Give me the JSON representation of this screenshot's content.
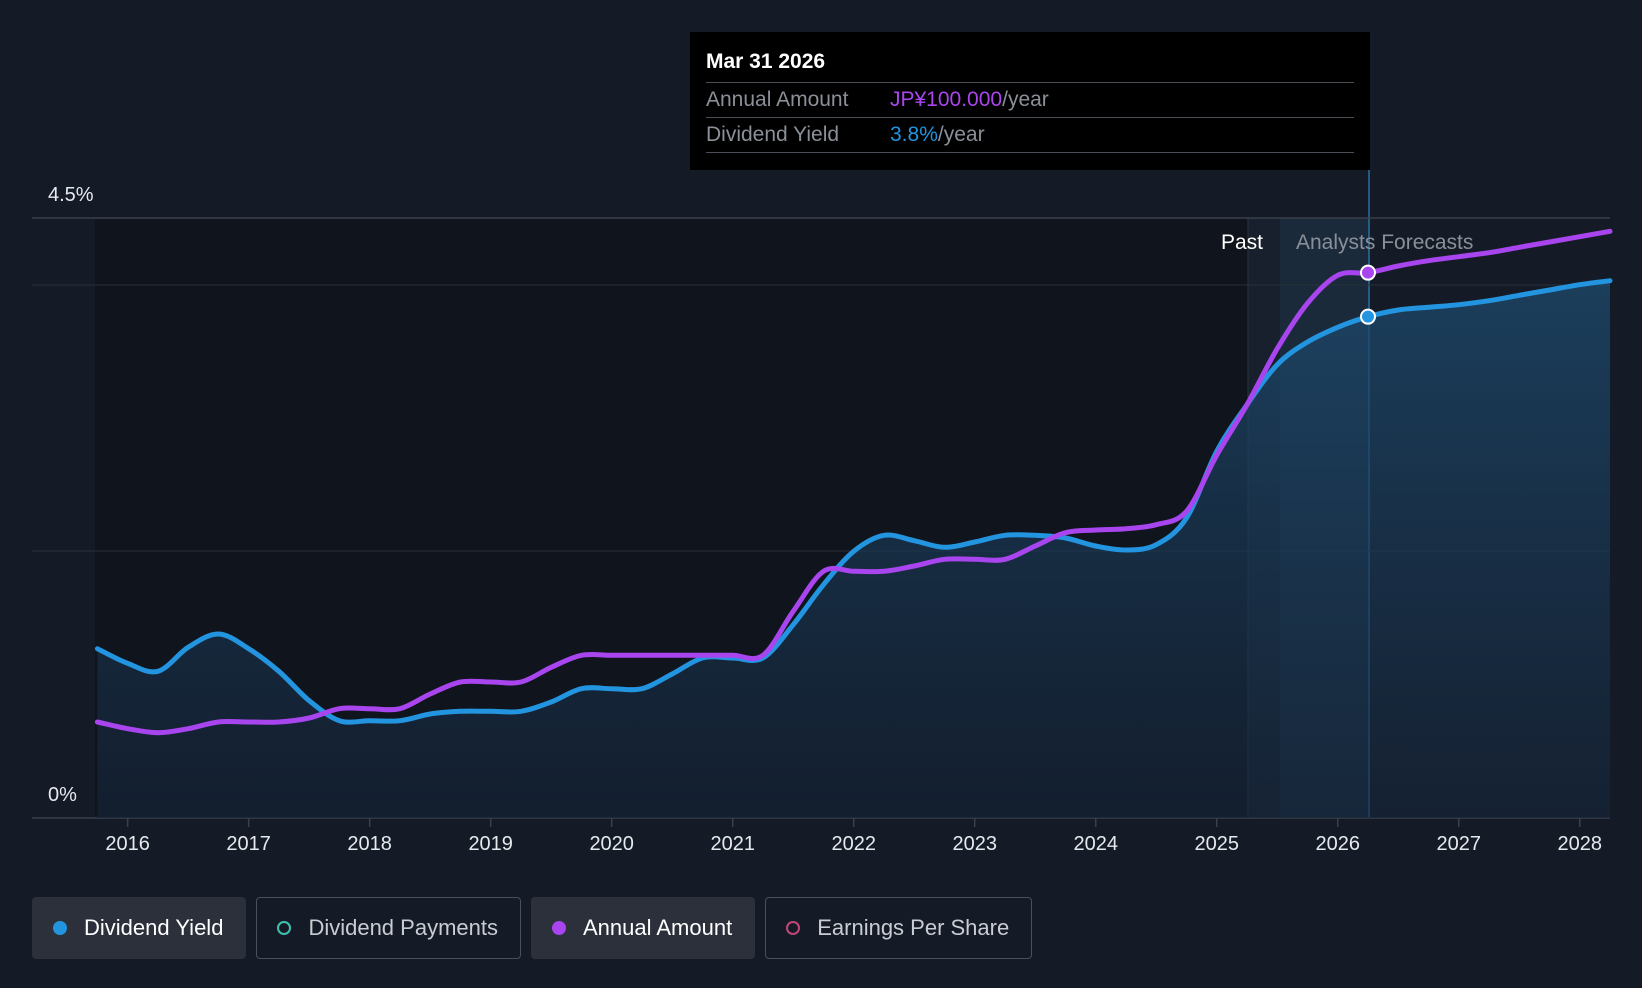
{
  "chart_data": {
    "type": "line",
    "title": "",
    "xlabel": "",
    "ylabel": "",
    "y_tick_labels": [
      {
        "value": 4.5,
        "label": "4.5%"
      },
      {
        "value": 0,
        "label": "0%"
      }
    ],
    "ylim": [
      0,
      4.5
    ],
    "xlim": [
      2015.73,
      2028.25
    ],
    "x_ticks": [
      2016,
      2017,
      2018,
      2019,
      2020,
      2021,
      2022,
      2023,
      2024,
      2025,
      2026,
      2027,
      2028
    ],
    "regions": {
      "past_label": "Past",
      "forecast_label": "Analysts Forecasts",
      "past_end": 2025.25,
      "forecast_start": 2025.5,
      "highlight_end": 2026.25
    },
    "grid": true,
    "legend_position": "bottom-left",
    "series": [
      {
        "name": "Dividend Yield",
        "color": "#2394df",
        "area": true,
        "points": [
          [
            2015.75,
            1.27
          ],
          [
            2016.0,
            1.16
          ],
          [
            2016.25,
            1.1
          ],
          [
            2016.5,
            1.28
          ],
          [
            2016.75,
            1.38
          ],
          [
            2017.0,
            1.27
          ],
          [
            2017.25,
            1.1
          ],
          [
            2017.5,
            0.88
          ],
          [
            2017.75,
            0.73
          ],
          [
            2018.0,
            0.73
          ],
          [
            2018.25,
            0.73
          ],
          [
            2018.5,
            0.78
          ],
          [
            2018.75,
            0.8
          ],
          [
            2019.0,
            0.8
          ],
          [
            2019.25,
            0.8
          ],
          [
            2019.5,
            0.87
          ],
          [
            2019.75,
            0.97
          ],
          [
            2020.0,
            0.97
          ],
          [
            2020.25,
            0.97
          ],
          [
            2020.5,
            1.08
          ],
          [
            2020.75,
            1.2
          ],
          [
            2021.0,
            1.2
          ],
          [
            2021.25,
            1.2
          ],
          [
            2021.5,
            1.45
          ],
          [
            2021.75,
            1.75
          ],
          [
            2022.0,
            2.0
          ],
          [
            2022.25,
            2.12
          ],
          [
            2022.5,
            2.08
          ],
          [
            2022.75,
            2.03
          ],
          [
            2023.0,
            2.07
          ],
          [
            2023.25,
            2.12
          ],
          [
            2023.5,
            2.12
          ],
          [
            2023.75,
            2.1
          ],
          [
            2024.0,
            2.04
          ],
          [
            2024.25,
            2.01
          ],
          [
            2024.5,
            2.05
          ],
          [
            2024.75,
            2.25
          ],
          [
            2025.0,
            2.75
          ],
          [
            2025.25,
            3.1
          ],
          [
            2025.5,
            3.4
          ],
          [
            2025.75,
            3.57
          ],
          [
            2026.0,
            3.68
          ],
          [
            2026.25,
            3.76
          ],
          [
            2026.5,
            3.81
          ],
          [
            2026.75,
            3.83
          ],
          [
            2027.0,
            3.85
          ],
          [
            2027.25,
            3.88
          ],
          [
            2027.5,
            3.92
          ],
          [
            2027.75,
            3.96
          ],
          [
            2028.0,
            4.0
          ],
          [
            2028.25,
            4.03
          ]
        ]
      },
      {
        "name": "Annual Amount",
        "color": "#a945ee",
        "area": false,
        "points": [
          [
            2015.75,
            0.72
          ],
          [
            2016.0,
            0.67
          ],
          [
            2016.25,
            0.64
          ],
          [
            2016.5,
            0.67
          ],
          [
            2016.75,
            0.72
          ],
          [
            2017.0,
            0.72
          ],
          [
            2017.25,
            0.72
          ],
          [
            2017.5,
            0.75
          ],
          [
            2017.75,
            0.82
          ],
          [
            2018.0,
            0.82
          ],
          [
            2018.25,
            0.82
          ],
          [
            2018.5,
            0.93
          ],
          [
            2018.75,
            1.02
          ],
          [
            2019.0,
            1.02
          ],
          [
            2019.25,
            1.02
          ],
          [
            2019.5,
            1.13
          ],
          [
            2019.75,
            1.22
          ],
          [
            2020.0,
            1.22
          ],
          [
            2020.25,
            1.22
          ],
          [
            2020.5,
            1.22
          ],
          [
            2020.75,
            1.22
          ],
          [
            2021.0,
            1.22
          ],
          [
            2021.25,
            1.22
          ],
          [
            2021.5,
            1.55
          ],
          [
            2021.75,
            1.85
          ],
          [
            2022.0,
            1.85
          ],
          [
            2022.25,
            1.85
          ],
          [
            2022.5,
            1.89
          ],
          [
            2022.75,
            1.94
          ],
          [
            2023.0,
            1.94
          ],
          [
            2023.25,
            1.94
          ],
          [
            2023.5,
            2.04
          ],
          [
            2023.75,
            2.14
          ],
          [
            2024.0,
            2.16
          ],
          [
            2024.25,
            2.17
          ],
          [
            2024.5,
            2.2
          ],
          [
            2024.75,
            2.3
          ],
          [
            2025.0,
            2.72
          ],
          [
            2025.25,
            3.1
          ],
          [
            2025.5,
            3.52
          ],
          [
            2025.75,
            3.86
          ],
          [
            2026.0,
            4.07
          ],
          [
            2026.25,
            4.09
          ],
          [
            2026.5,
            4.14
          ],
          [
            2026.75,
            4.18
          ],
          [
            2027.0,
            4.21
          ],
          [
            2027.25,
            4.24
          ],
          [
            2027.5,
            4.28
          ],
          [
            2027.75,
            4.32
          ],
          [
            2028.0,
            4.36
          ],
          [
            2028.25,
            4.4
          ]
        ]
      }
    ],
    "highlight": {
      "x": 2026.25,
      "values": {
        "Dividend Yield": 3.76,
        "Annual Amount": 4.09
      }
    }
  },
  "tooltip": {
    "date": "Mar 31 2026",
    "rows": [
      {
        "label": "Annual Amount",
        "value": "JP¥100.000",
        "unit": "/year",
        "color": "#a945ee"
      },
      {
        "label": "Dividend Yield",
        "value": "3.8%",
        "unit": "/year",
        "color": "#2394df"
      }
    ]
  },
  "legend": [
    {
      "label": "Dividend Yield",
      "color": "#2394df",
      "active": true
    },
    {
      "label": "Dividend Payments",
      "color": "#3fc1b0",
      "active": false
    },
    {
      "label": "Annual Amount",
      "color": "#a945ee",
      "active": true
    },
    {
      "label": "Earnings Per Share",
      "color": "#c2457a",
      "active": false
    }
  ]
}
